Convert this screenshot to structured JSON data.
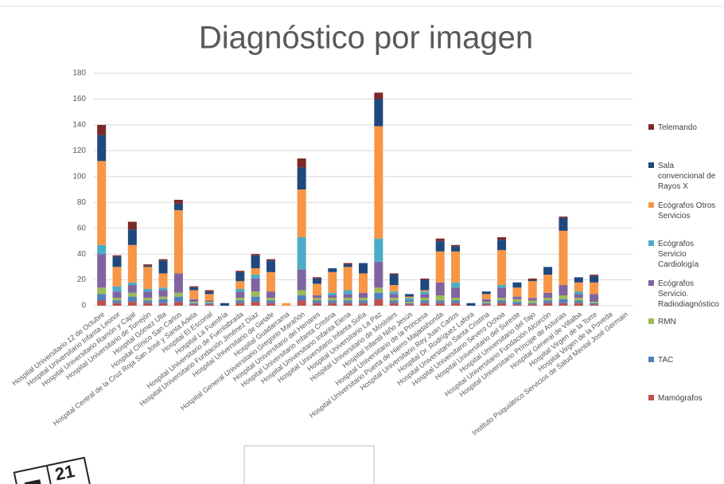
{
  "chart_data": {
    "type": "stacked_bar",
    "title": "Diagnóstico por imagen",
    "categories": [
      "Hospital Universitario 12 de Octubre",
      "Hospital Universitario Infanta Leonor",
      "Hospital Universitario Ramón y Cajal",
      "Hospital Universitario de Torrejón",
      "Hospital Gómez Ulla",
      "Hospital Clínico San Carlos",
      "Hospital Central de la Cruz Roja San José y Santa Adela",
      "Hospital El Escorial",
      "Hospital La Fuenfría",
      "Hospital Universitario de Fuenlabrada",
      "Hospital Universitario Fundación Jiménez Díaz",
      "Hospital Universitario de Getafe",
      "Hospital Guadarrama",
      "Hospital General Universitario Gregorio Marañón",
      "Hospital Universitario del Henares",
      "Hospital Universitario Infanta Cristina",
      "Hospital Universitario Infanta Elena",
      "Hospital Universitario Infanta Sofía",
      "Hospital Universitario La Paz",
      "Hospital Universitario de Móstoles",
      "Hospital Infantil Niño Jesús",
      "Hospital Universitario de la Princesa",
      "Hospital Universitario Puerta de Hierro Majadahonda",
      "Hospital Universitario Rey Juan Carlos",
      "Hospital Dr. Rodríguez Lafora",
      "Hospital Universitario Santa Cristina",
      "Hospital Universitario Severo Ochoa",
      "Hospital Universitario del Sureste",
      "Hospital Universitario del Tajo",
      "Hospital Universitario Fundación Alcorcón",
      "Hospital Universitario Príncipe de Asturias",
      "Hospital General de Villalba",
      "Hospital Virgen de la Torre",
      "Hospital Virgen de la Poveda",
      "Instituto Psiquiátrico Servicios de Salud Mental José Germain"
    ],
    "series": [
      {
        "name": "Mamógrafos",
        "color": "#c0504d",
        "values": [
          4,
          2,
          3,
          2,
          2,
          3,
          1,
          1,
          0,
          2,
          3,
          2,
          0,
          4,
          2,
          2,
          2,
          2,
          5,
          2,
          1,
          2,
          2,
          2,
          0,
          1,
          2,
          1,
          1,
          2,
          2,
          2,
          1,
          0,
          0
        ]
      },
      {
        "name": "TAC",
        "color": "#4f81bd",
        "values": [
          5,
          2,
          4,
          2,
          3,
          4,
          1,
          1,
          0,
          2,
          4,
          2,
          0,
          4,
          2,
          2,
          2,
          2,
          5,
          2,
          1,
          2,
          2,
          2,
          0,
          1,
          2,
          2,
          1,
          2,
          3,
          2,
          1,
          0,
          0
        ]
      },
      {
        "name": "RMN",
        "color": "#9bbb59",
        "values": [
          5,
          2,
          3,
          2,
          2,
          3,
          1,
          1,
          0,
          2,
          4,
          2,
          0,
          4,
          2,
          2,
          2,
          2,
          4,
          2,
          1,
          2,
          4,
          2,
          0,
          1,
          2,
          2,
          2,
          2,
          3,
          2,
          1,
          0,
          0
        ]
      },
      {
        "name": "Ecógrafos Servicio. Radiodiagnóstico",
        "color": "#8064a2",
        "values": [
          26,
          5,
          6,
          5,
          5,
          15,
          2,
          1,
          0,
          5,
          10,
          5,
          0,
          16,
          2,
          2,
          3,
          4,
          20,
          3,
          1,
          3,
          10,
          8,
          0,
          2,
          8,
          2,
          2,
          4,
          8,
          3,
          6,
          0,
          0
        ]
      },
      {
        "name": "Ecógrafos Servicio Cardiología",
        "color": "#4bacc6",
        "values": [
          7,
          4,
          2,
          2,
          2,
          0,
          0,
          0,
          0,
          2,
          3,
          0,
          0,
          25,
          0,
          2,
          3,
          0,
          18,
          2,
          2,
          2,
          0,
          4,
          0,
          0,
          2,
          0,
          0,
          0,
          0,
          2,
          0,
          0,
          0
        ]
      },
      {
        "name": "Ecógrafos Otros Servicios",
        "color": "#f79646",
        "values": [
          65,
          15,
          29,
          17,
          11,
          49,
          7,
          5,
          0,
          6,
          5,
          15,
          2,
          37,
          9,
          16,
          18,
          15,
          87,
          5,
          1,
          1,
          24,
          24,
          0,
          4,
          27,
          7,
          13,
          14,
          42,
          7,
          9,
          0,
          0
        ]
      },
      {
        "name": "Sala convencional de Rayos X",
        "color": "#1f497d",
        "values": [
          20,
          8,
          12,
          1,
          10,
          5,
          2,
          2,
          2,
          7,
          10,
          9,
          0,
          17,
          4,
          3,
          2,
          8,
          21,
          8,
          2,
          8,
          8,
          4,
          2,
          2,
          8,
          4,
          1,
          6,
          10,
          4,
          5,
          0,
          0
        ]
      },
      {
        "name": "Telemando",
        "color": "#7b2a27",
        "values": [
          8,
          1,
          6,
          1,
          1,
          3,
          1,
          1,
          0,
          1,
          1,
          1,
          0,
          7,
          1,
          0,
          1,
          0,
          5,
          1,
          0,
          1,
          2,
          1,
          0,
          0,
          2,
          0,
          1,
          0,
          1,
          0,
          1,
          0,
          0
        ]
      }
    ],
    "ylim": [
      0,
      180
    ],
    "yticks": [
      0,
      20,
      40,
      60,
      80,
      100,
      120,
      140,
      160,
      180
    ],
    "grid": true,
    "legend": "right",
    "icon_text": "21"
  }
}
